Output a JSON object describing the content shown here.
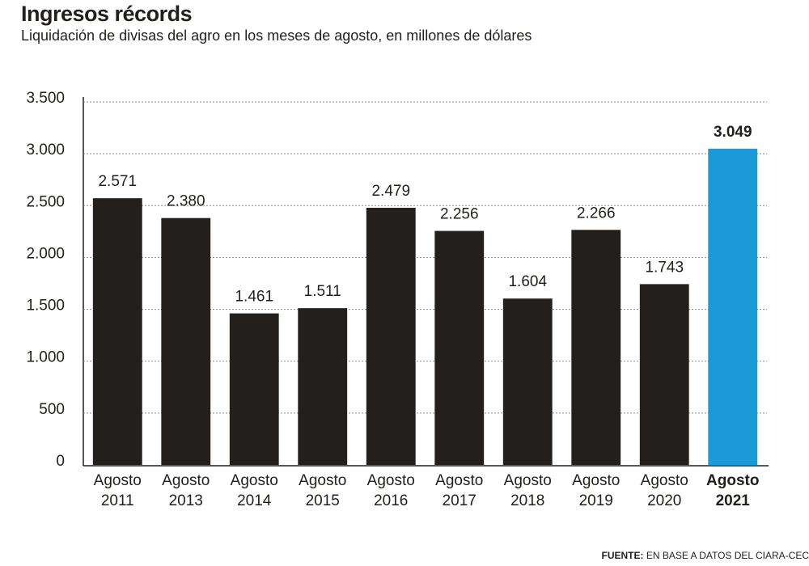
{
  "chart_data": {
    "type": "bar",
    "title": "Ingresos récords",
    "subtitle": "Liquidación de divisas del agro en los meses de agosto, en millones de dólares",
    "categories": [
      "Agosto 2011",
      "Agosto 2013",
      "Agosto 2014",
      "Agosto 2015",
      "Agosto 2016",
      "Agosto 2017",
      "Agosto 2018",
      "Agosto 2019",
      "Agosto 2020",
      "Agosto 2021"
    ],
    "values": [
      2571,
      2380,
      1461,
      1511,
      2479,
      2256,
      1604,
      2266,
      1743,
      3049
    ],
    "value_labels": [
      "2.571",
      "2.380",
      "1.461",
      "1.511",
      "2.479",
      "2.256",
      "1.604",
      "2.266",
      "1.743",
      "3.049"
    ],
    "colors": [
      "#231f1c",
      "#231f1c",
      "#231f1c",
      "#231f1c",
      "#231f1c",
      "#231f1c",
      "#231f1c",
      "#231f1c",
      "#231f1c",
      "#1a9ad6"
    ],
    "ylim": [
      0,
      3500
    ],
    "yticks": [
      0,
      500,
      {
        "value": 1000,
        "label": "1.000"
      },
      {
        "value": 1500,
        "label": "1.500"
      },
      {
        "value": 2000,
        "label": "2.000"
      },
      {
        "value": 2500,
        "label": "2.500"
      },
      {
        "value": 3000,
        "label": "3.000"
      },
      {
        "value": 3500,
        "label": "3.500"
      }
    ],
    "grid": true,
    "source_label": "FUENTE:",
    "source": "EN BASE A DATOS DEL CIARA-CEC"
  }
}
